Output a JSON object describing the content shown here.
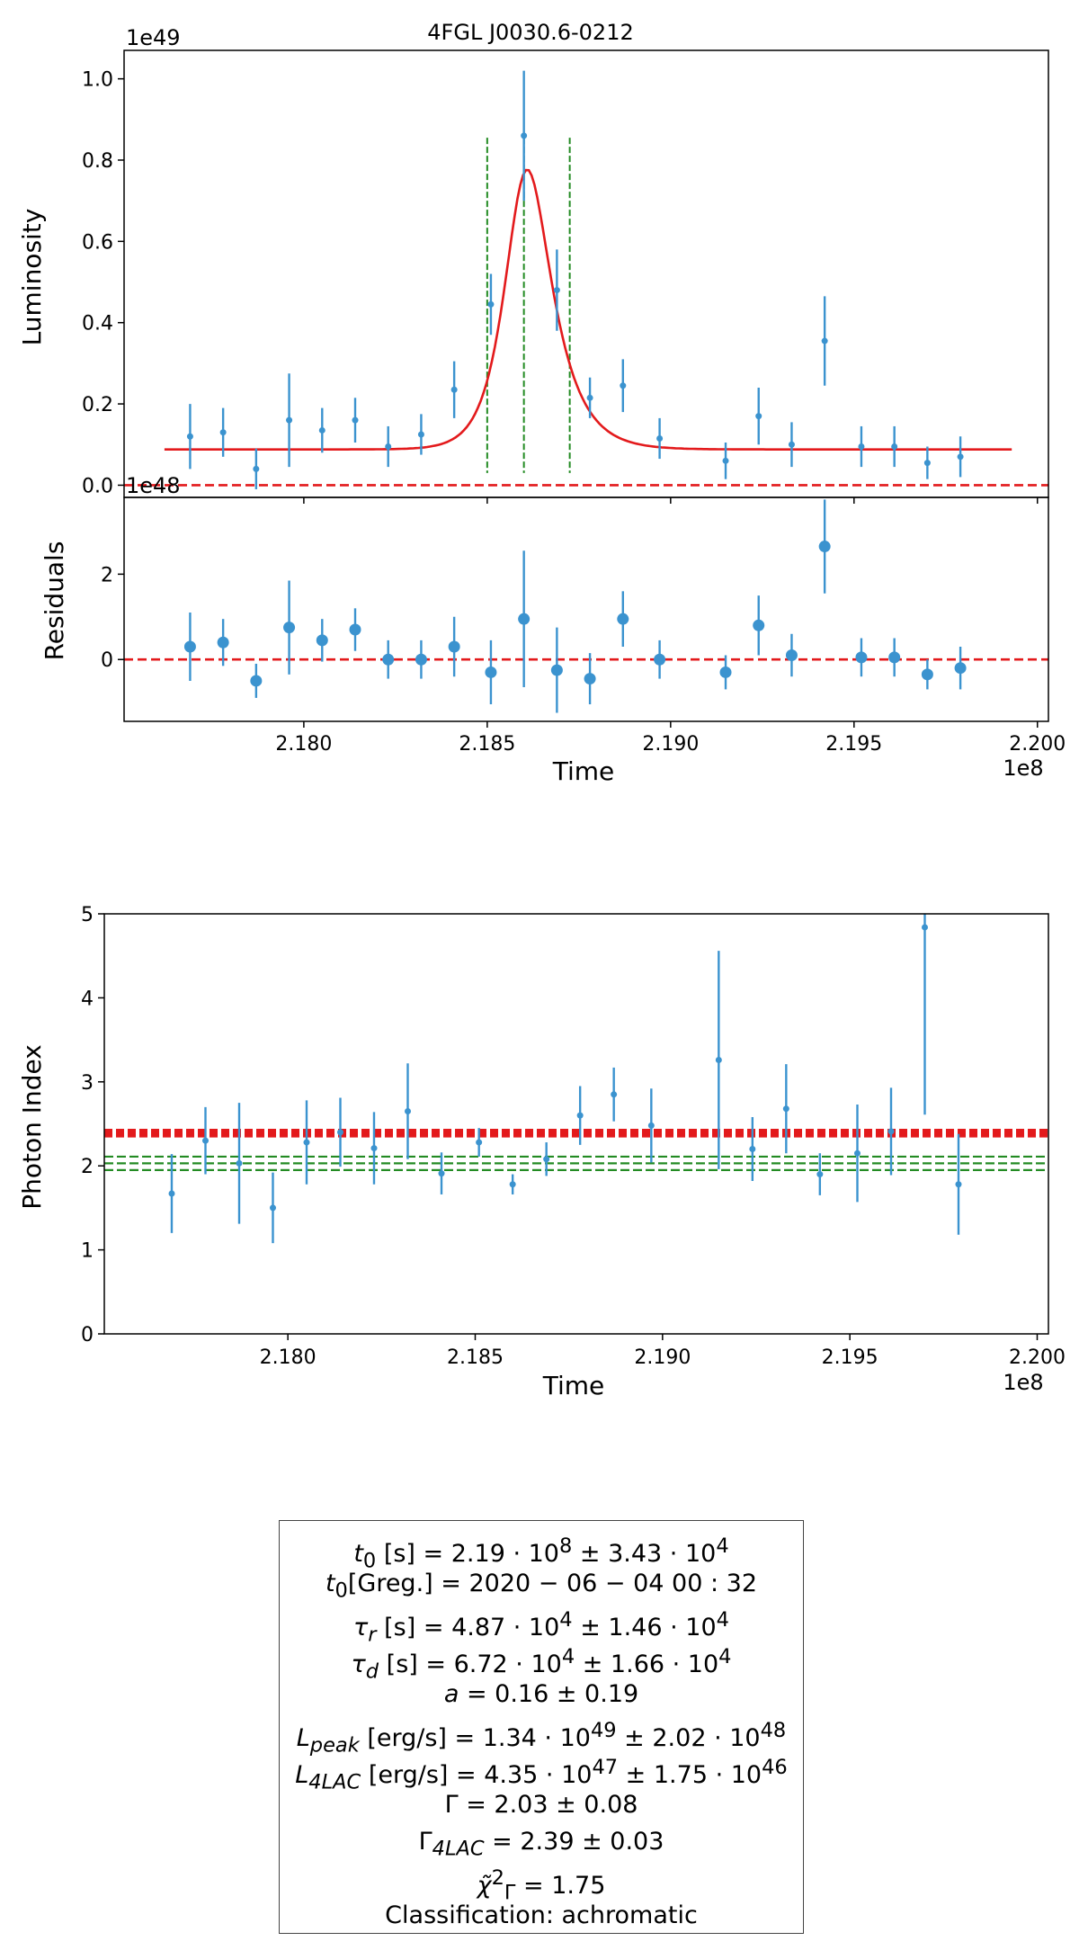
{
  "chart_data": [
    {
      "type": "scatter",
      "panel": "light-curve",
      "title": "4FGL J0030.6-0212",
      "xlabel": "Time",
      "ylabel": "Luminosity",
      "y_offset_label": "1e49",
      "xlim": [
        2.1751,
        2.2003
      ],
      "ylim": [
        -0.03,
        1.07
      ],
      "yticks": [
        0.0,
        0.2,
        0.4,
        0.6,
        0.8,
        1.0
      ],
      "ytick_labels": [
        "0.0",
        "0.2",
        "0.4",
        "0.6",
        "0.8",
        "1.0"
      ],
      "x_unit_scale": 100000000.0,
      "points": [
        {
          "x": 2.1769,
          "y": 0.12,
          "err": 0.08
        },
        {
          "x": 2.1778,
          "y": 0.13,
          "err": 0.06
        },
        {
          "x": 2.1787,
          "y": 0.04,
          "err": 0.05
        },
        {
          "x": 2.1796,
          "y": 0.16,
          "err": 0.115
        },
        {
          "x": 2.1805,
          "y": 0.135,
          "err": 0.055
        },
        {
          "x": 2.1814,
          "y": 0.16,
          "err": 0.055
        },
        {
          "x": 2.1823,
          "y": 0.095,
          "err": 0.05
        },
        {
          "x": 2.1832,
          "y": 0.125,
          "err": 0.05
        },
        {
          "x": 2.1841,
          "y": 0.235,
          "err": 0.07
        },
        {
          "x": 2.1851,
          "y": 0.445,
          "err": 0.075
        },
        {
          "x": 2.186,
          "y": 0.86,
          "err": 0.16
        },
        {
          "x": 2.1869,
          "y": 0.48,
          "err": 0.1
        },
        {
          "x": 2.1878,
          "y": 0.215,
          "err": 0.05
        },
        {
          "x": 2.1887,
          "y": 0.245,
          "err": 0.065
        },
        {
          "x": 2.1897,
          "y": 0.115,
          "err": 0.05
        },
        {
          "x": 2.1915,
          "y": 0.06,
          "err": 0.045
        },
        {
          "x": 2.1924,
          "y": 0.17,
          "err": 0.07
        },
        {
          "x": 2.1933,
          "y": 0.1,
          "err": 0.055
        },
        {
          "x": 2.1942,
          "y": 0.355,
          "err": 0.11
        },
        {
          "x": 2.1952,
          "y": 0.095,
          "err": 0.05
        },
        {
          "x": 2.1961,
          "y": 0.095,
          "err": 0.05
        },
        {
          "x": 2.197,
          "y": 0.055,
          "err": 0.04
        },
        {
          "x": 2.1979,
          "y": 0.07,
          "err": 0.05
        }
      ],
      "model_curve": {
        "color": "#e31a1c",
        "baseline": 0.088,
        "peak_time": 2.186,
        "peak": 0.768,
        "tau_rise": 0.000487,
        "tau_decay": 0.000672,
        "x_range": [
          2.1762,
          2.1993
        ]
      },
      "vertical_lines": [
        2.185,
        2.186,
        2.18725
      ],
      "zero_line": 0.0
    },
    {
      "type": "scatter",
      "panel": "residuals",
      "xlabel": "Time",
      "ylabel": "Residuals",
      "y_offset_label": "1e48",
      "x_offset_label": "1e8",
      "xlim": [
        2.1751,
        2.2003
      ],
      "ylim": [
        -1.45,
        3.8
      ],
      "yticks": [
        0,
        2
      ],
      "ytick_labels": [
        "0",
        "2"
      ],
      "xticks": [
        2.18,
        2.185,
        2.19,
        2.195,
        2.2
      ],
      "xtick_labels": [
        "2.180",
        "2.185",
        "2.190",
        "2.195",
        "2.200"
      ],
      "points": [
        {
          "x": 2.1769,
          "y": 0.3,
          "err": 0.8
        },
        {
          "x": 2.1778,
          "y": 0.4,
          "err": 0.55
        },
        {
          "x": 2.1787,
          "y": -0.5,
          "err": 0.4
        },
        {
          "x": 2.1796,
          "y": 0.75,
          "err": 1.1
        },
        {
          "x": 2.1805,
          "y": 0.45,
          "err": 0.5
        },
        {
          "x": 2.1814,
          "y": 0.7,
          "err": 0.5
        },
        {
          "x": 2.1823,
          "y": 0.0,
          "err": 0.45
        },
        {
          "x": 2.1832,
          "y": 0.0,
          "err": 0.45
        },
        {
          "x": 2.1841,
          "y": 0.3,
          "err": 0.7
        },
        {
          "x": 2.1851,
          "y": -0.3,
          "err": 0.75
        },
        {
          "x": 2.186,
          "y": 0.95,
          "err": 1.6
        },
        {
          "x": 2.1869,
          "y": -0.25,
          "err": 1.0
        },
        {
          "x": 2.1878,
          "y": -0.45,
          "err": 0.6
        },
        {
          "x": 2.1887,
          "y": 0.95,
          "err": 0.65
        },
        {
          "x": 2.1897,
          "y": 0.0,
          "err": 0.45
        },
        {
          "x": 2.1915,
          "y": -0.3,
          "err": 0.4
        },
        {
          "x": 2.1924,
          "y": 0.8,
          "err": 0.7
        },
        {
          "x": 2.1933,
          "y": 0.1,
          "err": 0.5
        },
        {
          "x": 2.1942,
          "y": 2.65,
          "err": 1.1
        },
        {
          "x": 2.1952,
          "y": 0.05,
          "err": 0.45
        },
        {
          "x": 2.1961,
          "y": 0.05,
          "err": 0.45
        },
        {
          "x": 2.197,
          "y": -0.35,
          "err": 0.35
        },
        {
          "x": 2.1979,
          "y": -0.2,
          "err": 0.5
        }
      ],
      "zero_line": 0
    },
    {
      "type": "scatter",
      "panel": "photon-index",
      "xlabel": "Time",
      "ylabel": "Photon Index",
      "x_offset_label": "1e8",
      "xlim": [
        2.1751,
        2.2003
      ],
      "ylim": [
        0,
        5
      ],
      "yticks": [
        0,
        1,
        2,
        3,
        4,
        5
      ],
      "ytick_labels": [
        "0",
        "1",
        "2",
        "3",
        "4",
        "5"
      ],
      "xticks": [
        2.18,
        2.185,
        2.19,
        2.195,
        2.2
      ],
      "xtick_labels": [
        "2.180",
        "2.185",
        "2.190",
        "2.195",
        "2.200"
      ],
      "points": [
        {
          "x": 2.1769,
          "y": 1.67,
          "err": 0.47
        },
        {
          "x": 2.1778,
          "y": 2.3,
          "err": 0.4
        },
        {
          "x": 2.1787,
          "y": 2.03,
          "err": 0.72
        },
        {
          "x": 2.1796,
          "y": 1.5,
          "err": 0.42
        },
        {
          "x": 2.1805,
          "y": 2.28,
          "err": 0.5
        },
        {
          "x": 2.1814,
          "y": 2.4,
          "err": 0.41
        },
        {
          "x": 2.1823,
          "y": 2.21,
          "err": 0.43
        },
        {
          "x": 2.1832,
          "y": 2.65,
          "err": 0.57
        },
        {
          "x": 2.1841,
          "y": 1.91,
          "err": 0.25
        },
        {
          "x": 2.1851,
          "y": 2.28,
          "err": 0.17
        },
        {
          "x": 2.186,
          "y": 1.78,
          "err": 0.12
        },
        {
          "x": 2.1869,
          "y": 2.08,
          "err": 0.2
        },
        {
          "x": 2.1878,
          "y": 2.6,
          "err": 0.35
        },
        {
          "x": 2.1887,
          "y": 2.85,
          "err": 0.32
        },
        {
          "x": 2.1897,
          "y": 2.48,
          "err": 0.44
        },
        {
          "x": 2.1915,
          "y": 3.26,
          "err": 1.3
        },
        {
          "x": 2.1924,
          "y": 2.2,
          "err": 0.38
        },
        {
          "x": 2.1933,
          "y": 2.68,
          "err": 0.53
        },
        {
          "x": 2.1942,
          "y": 1.9,
          "err": 0.25
        },
        {
          "x": 2.1952,
          "y": 2.15,
          "err": 0.58
        },
        {
          "x": 2.1961,
          "y": 2.41,
          "err": 0.52
        },
        {
          "x": 2.197,
          "y": 4.84,
          "err": 2.23
        },
        {
          "x": 2.1979,
          "y": 1.78,
          "err": 0.6
        }
      ],
      "reference_lines": [
        {
          "y": 2.39,
          "color": "#e31a1c",
          "style": "dashed-thick",
          "label": "Gamma_4LAC"
        },
        {
          "y": 2.42,
          "color": "#e31a1c",
          "style": "dashed-thick"
        },
        {
          "y": 2.36,
          "color": "#e31a1c",
          "style": "dashed-thick"
        },
        {
          "y": 2.03,
          "color": "#238b23",
          "style": "dashed",
          "label": "Gamma"
        },
        {
          "y": 2.11,
          "color": "#238b23",
          "style": "dashed"
        },
        {
          "y": 1.95,
          "color": "#238b23",
          "style": "dashed"
        }
      ]
    }
  ],
  "colors": {
    "points": "#3b93cf",
    "model": "#e31a1c",
    "zero_line": "#e31a1c",
    "vlines": "#238b23"
  },
  "stats_box": {
    "t0_sym": "t",
    "t0_sub": "0",
    "t0_unit": " [s] = 2.19 · 10",
    "t0_exp": "8",
    "t0_pm": "  ±  3.43 · 10",
    "t0_pm_exp": "4",
    "greg_sym": "t",
    "greg_sub": "0",
    "greg_rest": "[Greg.] = 2020 − 06 − 04 00 : 32",
    "taur_sym": "τ",
    "taur_sub": "r",
    "taur_unit": " [s] = 4.87 · 10",
    "taur_exp": "4",
    "taur_pm": "  ±  1.46 · 10",
    "taur_pm_exp": "4",
    "taud_sym": "τ",
    "taud_sub": "d",
    "taud_unit": " [s] = 6.72 · 10",
    "taud_exp": "4",
    "taud_pm": "  ±  1.66 · 10",
    "taud_pm_exp": "4",
    "a_sym": "a",
    "a_rest": " = 0.16 ±  0.19",
    "lpeak_sym": "L",
    "lpeak_sub": "peak",
    "lpeak_unit": " [erg/s] = 1.34 · 10",
    "lpeak_exp": "49",
    "lpeak_pm": "  ±  2.02 · 10",
    "lpeak_pm_exp": "48",
    "l4lac_sym": "L",
    "l4lac_sub": "4LAC",
    "l4lac_unit": " [erg/s] = 4.35 · 10",
    "l4lac_exp": "47",
    "l4lac_pm": "  ±  1.75 · 10",
    "l4lac_pm_exp": "46",
    "gamma_sym": "Γ",
    "gamma_rest": " = 2.03 ± 0.08",
    "gamma4_sym": "Γ",
    "gamma4_sub": "4LAC",
    "gamma4_rest": " = 2.39 ± 0.03",
    "chi_sym": "χ̃",
    "chi_sup": "2",
    "chi_sub": "Γ",
    "chi_rest": " = 1.75",
    "classification": "Classification: achromatic"
  }
}
